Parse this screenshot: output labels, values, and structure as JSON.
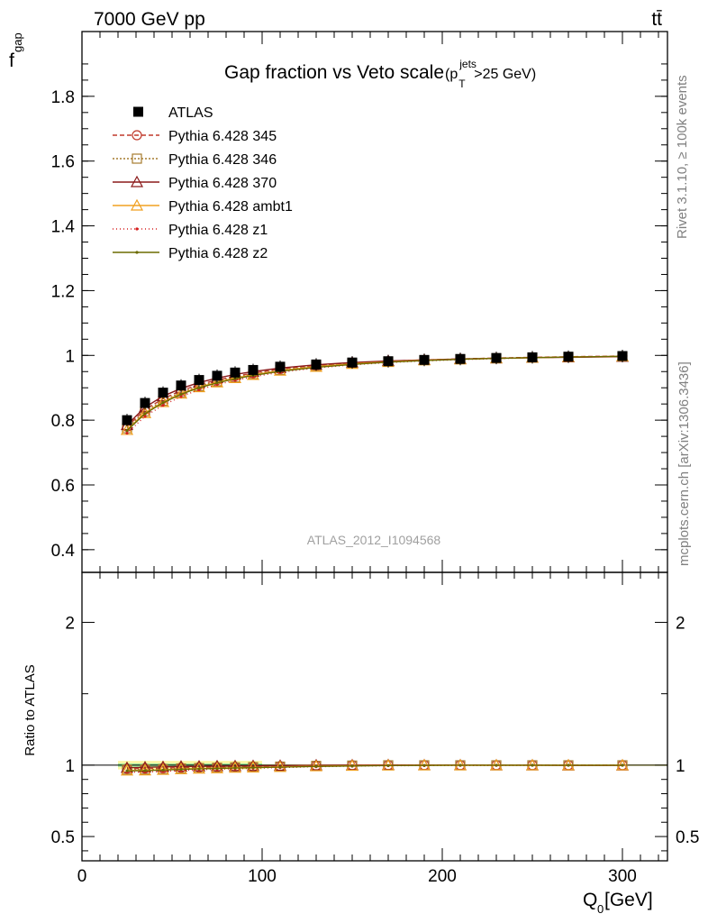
{
  "header": {
    "left": "7000 GeV pp",
    "right": "tt̄"
  },
  "side_labels": {
    "rivet": "Rivet 3.1.10, ≥ 100k events",
    "mcplots": "mcplots.cern.ch [arXiv:1306.3436]"
  },
  "chart_data": [
    {
      "type": "line",
      "title": "Gap fraction vs Veto scale",
      "title_suffix": {
        "p": "(p",
        "sub": "T",
        "sup": "jets",
        "tail": ">25 GeV)"
      },
      "ylabel": {
        "main": "f",
        "sub": "gap"
      },
      "watermark": "ATLAS_2012_I1094568",
      "xlim": [
        0,
        325
      ],
      "ylim": [
        0.33,
        2.0
      ],
      "yticks": [
        0.4,
        0.6,
        0.8,
        1,
        1.2,
        1.4,
        1.6,
        1.8
      ],
      "ytick_labels": [
        "0.4",
        "0.6",
        "0.8",
        "1",
        "1.2",
        "1.4",
        "1.6",
        "1.8"
      ],
      "x": [
        25,
        35,
        45,
        55,
        65,
        75,
        85,
        95,
        110,
        130,
        150,
        170,
        190,
        210,
        230,
        250,
        270,
        300
      ],
      "data": {
        "name": "ATLAS",
        "values": [
          0.8,
          0.853,
          0.885,
          0.907,
          0.924,
          0.937,
          0.947,
          0.955,
          0.965,
          0.972,
          0.978,
          0.982,
          0.986,
          0.989,
          0.992,
          0.994,
          0.996,
          0.998
        ]
      },
      "series": [
        {
          "name": "Pythia 6.428 345",
          "color": "#c0392b",
          "dash": "5,3",
          "marker": "circle",
          "values": [
            0.78,
            0.833,
            0.866,
            0.891,
            0.91,
            0.924,
            0.936,
            0.945,
            0.958,
            0.969,
            0.977,
            0.982,
            0.986,
            0.989,
            0.992,
            0.994,
            0.996,
            0.998
          ]
        },
        {
          "name": "Pythia 6.428 346",
          "color": "#a67c2e",
          "dash": "2,2",
          "marker": "square",
          "values": [
            0.775,
            0.827,
            0.86,
            0.886,
            0.905,
            0.92,
            0.932,
            0.942,
            0.955,
            0.967,
            0.975,
            0.981,
            0.985,
            0.988,
            0.991,
            0.993,
            0.995,
            0.997
          ]
        },
        {
          "name": "Pythia 6.428 370",
          "color": "#8b1a1a",
          "dash": "",
          "marker": "triangle",
          "values": [
            0.785,
            0.84,
            0.874,
            0.898,
            0.916,
            0.93,
            0.941,
            0.95,
            0.961,
            0.971,
            0.978,
            0.983,
            0.986,
            0.989,
            0.991,
            0.993,
            0.994,
            0.996
          ]
        },
        {
          "name": "Pythia 6.428 ambt1",
          "color": "#f0a020",
          "dash": "",
          "marker": "triangle",
          "values": [
            0.77,
            0.822,
            0.856,
            0.882,
            0.902,
            0.917,
            0.93,
            0.94,
            0.953,
            0.965,
            0.974,
            0.98,
            0.985,
            0.988,
            0.991,
            0.993,
            0.995,
            0.997
          ]
        },
        {
          "name": "Pythia 6.428 z1",
          "color": "#d62020",
          "dash": "1,3",
          "marker": "dot",
          "values": [
            0.76,
            0.812,
            0.846,
            0.873,
            0.894,
            0.91,
            0.923,
            0.934,
            0.948,
            0.961,
            0.971,
            0.978,
            0.983,
            0.987,
            0.99,
            0.993,
            0.995,
            0.997
          ]
        },
        {
          "name": "Pythia 6.428 z2",
          "color": "#6b6b00",
          "dash": "",
          "marker": "dot",
          "values": [
            0.768,
            0.82,
            0.854,
            0.88,
            0.9,
            0.915,
            0.928,
            0.938,
            0.951,
            0.963,
            0.972,
            0.979,
            0.984,
            0.988,
            0.991,
            0.993,
            0.995,
            0.997
          ]
        }
      ]
    },
    {
      "type": "line",
      "ylabel": "Ratio to ATLAS",
      "xlabel": {
        "main": "Q",
        "sub": "0",
        "tail": " [GeV]"
      },
      "xlim": [
        0,
        325
      ],
      "xticks": [
        0,
        100,
        200,
        300
      ],
      "xtick_labels": [
        "0",
        "100",
        "200",
        "300"
      ],
      "ylim": [
        0.33,
        2.35
      ],
      "yticks": [
        0.5,
        1,
        2
      ],
      "ytick_labels": [
        "0.5",
        "1",
        "2"
      ],
      "band_color_outer": "#fbf7a6",
      "band_color_inner": "#9be89b"
    }
  ]
}
